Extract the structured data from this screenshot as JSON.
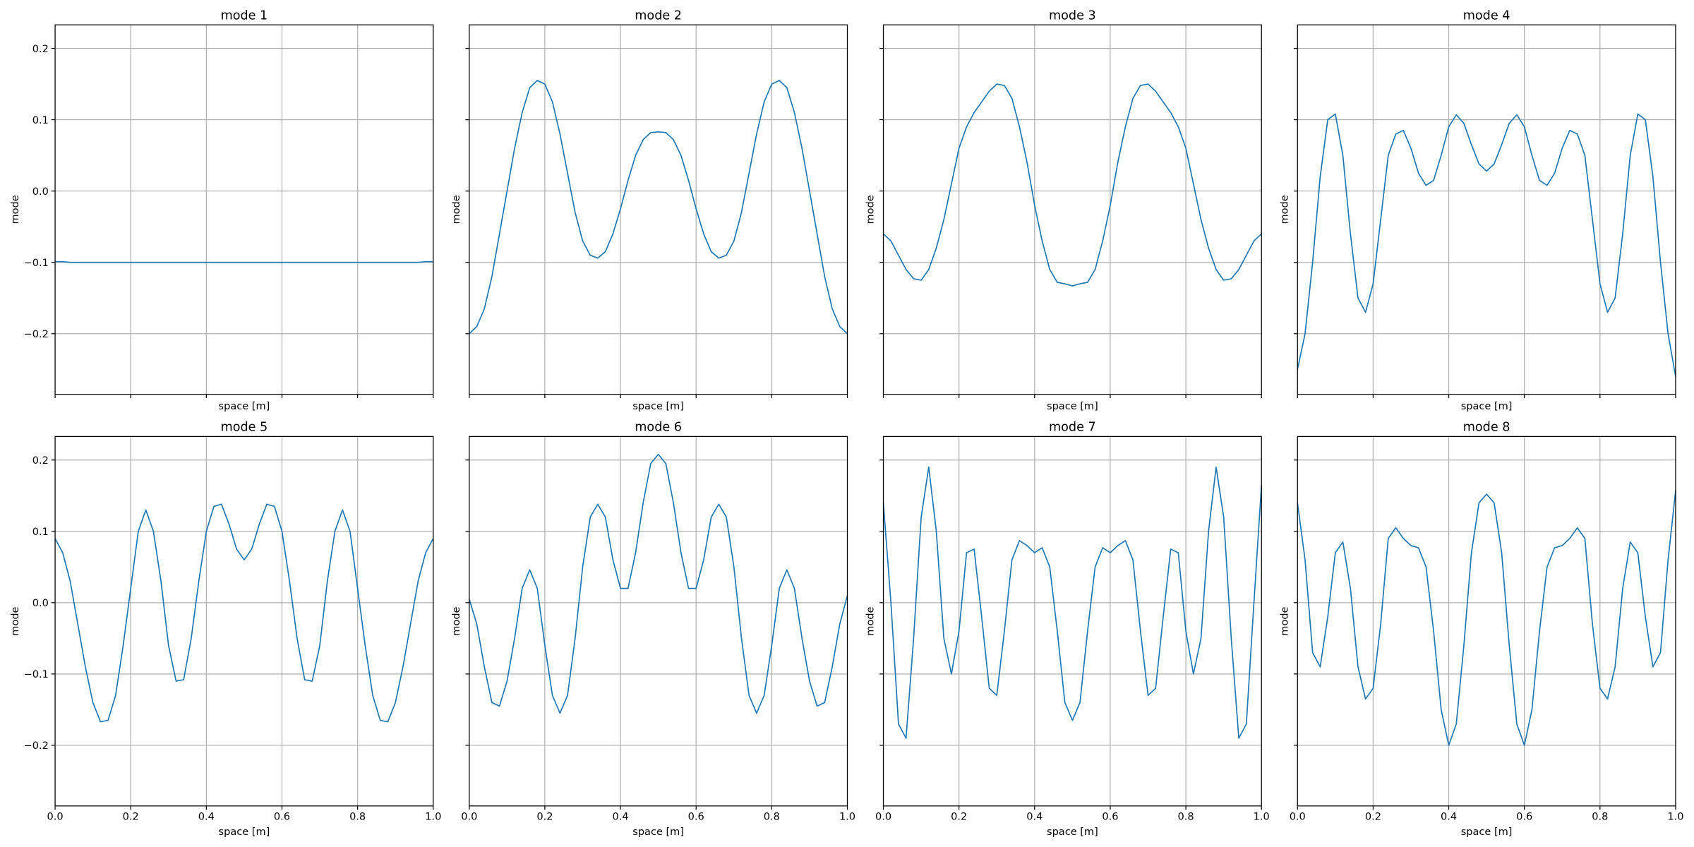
{
  "chart_data": [
    {
      "type": "line",
      "title": "mode 1",
      "xlabel": "space [m]",
      "ylabel": "mode",
      "color": "#1f77b4",
      "grid": true,
      "x": [
        0,
        0.02,
        0.04,
        0.06,
        0.08,
        0.1,
        0.12,
        0.14,
        0.16,
        0.18,
        0.2,
        0.22,
        0.24,
        0.26,
        0.28,
        0.3,
        0.32,
        0.34,
        0.36,
        0.38,
        0.4,
        0.42,
        0.44,
        0.46,
        0.48,
        0.5,
        0.52,
        0.54,
        0.56,
        0.58,
        0.6,
        0.62,
        0.64,
        0.66,
        0.68,
        0.7,
        0.72,
        0.74,
        0.76,
        0.78,
        0.8,
        0.82,
        0.84,
        0.86,
        0.88,
        0.9,
        0.92,
        0.94,
        0.96,
        0.98,
        1
      ],
      "values": [
        -0.099,
        -0.099,
        -0.1,
        -0.1,
        -0.1,
        -0.1,
        -0.1,
        -0.1,
        -0.1,
        -0.1,
        -0.1,
        -0.1,
        -0.1,
        -0.1,
        -0.1,
        -0.1,
        -0.1,
        -0.1,
        -0.1,
        -0.1,
        -0.1,
        -0.1,
        -0.1,
        -0.1,
        -0.1,
        -0.1,
        -0.1,
        -0.1,
        -0.1,
        -0.1,
        -0.1,
        -0.1,
        -0.1,
        -0.1,
        -0.1,
        -0.1,
        -0.1,
        -0.1,
        -0.1,
        -0.1,
        -0.1,
        -0.1,
        -0.1,
        -0.1,
        -0.1,
        -0.1,
        -0.1,
        -0.1,
        -0.1,
        -0.099,
        -0.099
      ],
      "xlim": [
        0,
        1
      ],
      "ylim": [
        -0.285,
        0.233
      ],
      "xticks": [
        {
          "value": 0,
          "label": "0.0"
        },
        0.2,
        0.4,
        0.6,
        0.8,
        {
          "value": 1,
          "label": "1.0"
        }
      ],
      "yticks": [
        {
          "value": -0.2,
          "label": "−0.2"
        },
        {
          "value": -0.1,
          "label": "−0.1"
        },
        {
          "value": 0,
          "label": "0.0"
        },
        0.1,
        0.2
      ]
    },
    {
      "type": "line",
      "title": "mode 2",
      "xlabel": "space [m]",
      "ylabel": "mode",
      "color": "#1f77b4",
      "grid": true,
      "x": [
        0,
        0.02,
        0.04,
        0.06,
        0.08,
        0.1,
        0.12,
        0.14,
        0.16,
        0.18,
        0.2,
        0.22,
        0.24,
        0.26,
        0.28,
        0.3,
        0.32,
        0.34,
        0.36,
        0.38,
        0.4,
        0.42,
        0.44,
        0.46,
        0.48,
        0.5,
        0.52,
        0.54,
        0.56,
        0.58,
        0.6,
        0.62,
        0.64,
        0.66,
        0.68,
        0.7,
        0.72,
        0.74,
        0.76,
        0.78,
        0.8,
        0.82,
        0.84,
        0.86,
        0.88,
        0.9,
        0.92,
        0.94,
        0.96,
        0.98,
        1
      ],
      "values": [
        -0.2,
        -0.19,
        -0.165,
        -0.12,
        -0.06,
        0,
        0.06,
        0.11,
        0.145,
        0.155,
        0.15,
        0.125,
        0.08,
        0.025,
        -0.03,
        -0.07,
        -0.09,
        -0.094,
        -0.085,
        -0.06,
        -0.025,
        0.015,
        0.05,
        0.072,
        0.082,
        0.083,
        0.082,
        0.072,
        0.05,
        0.015,
        -0.025,
        -0.06,
        -0.085,
        -0.094,
        -0.09,
        -0.07,
        -0.03,
        0.025,
        0.08,
        0.125,
        0.15,
        0.155,
        0.145,
        0.11,
        0.06,
        0,
        -0.06,
        -0.12,
        -0.165,
        -0.19,
        -0.2
      ],
      "xlim": [
        0,
        1
      ],
      "ylim": [
        -0.285,
        0.233
      ],
      "xticks": [
        {
          "value": 0,
          "label": "0.0"
        },
        0.2,
        0.4,
        0.6,
        0.8,
        {
          "value": 1,
          "label": "1.0"
        }
      ],
      "yticks": [
        {
          "value": -0.2,
          "label": "−0.2"
        },
        {
          "value": -0.1,
          "label": "−0.1"
        },
        {
          "value": 0,
          "label": "0.0"
        },
        0.1,
        0.2
      ]
    },
    {
      "type": "line",
      "title": "mode 3",
      "xlabel": "space [m]",
      "ylabel": "mode",
      "color": "#1f77b4",
      "grid": true,
      "x": [
        0,
        0.02,
        0.04,
        0.06,
        0.08,
        0.1,
        0.12,
        0.14,
        0.16,
        0.18,
        0.2,
        0.22,
        0.24,
        0.26,
        0.28,
        0.3,
        0.32,
        0.34,
        0.36,
        0.38,
        0.4,
        0.42,
        0.44,
        0.46,
        0.48,
        0.5,
        0.52,
        0.54,
        0.56,
        0.58,
        0.6,
        0.62,
        0.64,
        0.66,
        0.68,
        0.7,
        0.72,
        0.74,
        0.76,
        0.78,
        0.8,
        0.82,
        0.84,
        0.86,
        0.88,
        0.9,
        0.92,
        0.94,
        0.96,
        0.98,
        1
      ],
      "values": [
        -0.06,
        -0.07,
        -0.09,
        -0.11,
        -0.123,
        -0.125,
        -0.11,
        -0.08,
        -0.04,
        0.01,
        0.06,
        0.09,
        0.11,
        0.125,
        0.14,
        0.15,
        0.148,
        0.13,
        0.09,
        0.04,
        -0.02,
        -0.07,
        -0.11,
        -0.128,
        -0.13,
        -0.133,
        -0.13,
        -0.128,
        -0.11,
        -0.07,
        -0.02,
        0.04,
        0.09,
        0.13,
        0.148,
        0.15,
        0.14,
        0.125,
        0.11,
        0.09,
        0.06,
        0.01,
        -0.04,
        -0.08,
        -0.11,
        -0.125,
        -0.123,
        -0.11,
        -0.09,
        -0.07,
        -0.06
      ],
      "xlim": [
        0,
        1
      ],
      "ylim": [
        -0.285,
        0.233
      ],
      "xticks": [
        {
          "value": 0,
          "label": "0.0"
        },
        0.2,
        0.4,
        0.6,
        0.8,
        {
          "value": 1,
          "label": "1.0"
        }
      ],
      "yticks": [
        {
          "value": -0.2,
          "label": "−0.2"
        },
        {
          "value": -0.1,
          "label": "−0.1"
        },
        {
          "value": 0,
          "label": "0.0"
        },
        0.1,
        0.2
      ]
    },
    {
      "type": "line",
      "title": "mode 4",
      "xlabel": "space [m]",
      "ylabel": "mode",
      "color": "#1f77b4",
      "grid": true,
      "x": [
        0,
        0.02,
        0.04,
        0.06,
        0.08,
        0.1,
        0.12,
        0.14,
        0.16,
        0.18,
        0.2,
        0.22,
        0.24,
        0.26,
        0.28,
        0.3,
        0.32,
        0.34,
        0.36,
        0.38,
        0.4,
        0.42,
        0.44,
        0.46,
        0.48,
        0.5,
        0.52,
        0.54,
        0.56,
        0.58,
        0.6,
        0.62,
        0.64,
        0.66,
        0.68,
        0.7,
        0.72,
        0.74,
        0.76,
        0.78,
        0.8,
        0.82,
        0.84,
        0.86,
        0.88,
        0.9,
        0.92,
        0.94,
        0.96,
        0.98,
        1
      ],
      "values": [
        -0.25,
        -0.2,
        -0.1,
        0.02,
        0.1,
        0.108,
        0.05,
        -0.06,
        -0.15,
        -0.17,
        -0.13,
        -0.04,
        0.05,
        0.08,
        0.085,
        0.06,
        0.025,
        0.008,
        0.015,
        0.05,
        0.09,
        0.107,
        0.095,
        0.065,
        0.038,
        0.028,
        0.038,
        0.065,
        0.095,
        0.107,
        0.09,
        0.05,
        0.015,
        0.008,
        0.025,
        0.06,
        0.085,
        0.08,
        0.05,
        -0.04,
        -0.13,
        -0.17,
        -0.15,
        -0.06,
        0.05,
        0.108,
        0.1,
        0.02,
        -0.1,
        -0.2,
        -0.26
      ],
      "xlim": [
        0,
        1
      ],
      "ylim": [
        -0.285,
        0.233
      ],
      "xticks": [
        {
          "value": 0,
          "label": "0.0"
        },
        0.2,
        0.4,
        0.6,
        0.8,
        {
          "value": 1,
          "label": "1.0"
        }
      ],
      "yticks": [
        {
          "value": -0.2,
          "label": "−0.2"
        },
        {
          "value": -0.1,
          "label": "−0.1"
        },
        {
          "value": 0,
          "label": "0.0"
        },
        0.1,
        0.2
      ]
    },
    {
      "type": "line",
      "title": "mode 5",
      "xlabel": "space [m]",
      "ylabel": "mode",
      "color": "#1f77b4",
      "grid": true,
      "x": [
        0,
        0.02,
        0.04,
        0.06,
        0.08,
        0.1,
        0.12,
        0.14,
        0.16,
        0.18,
        0.2,
        0.22,
        0.24,
        0.26,
        0.28,
        0.3,
        0.32,
        0.34,
        0.36,
        0.38,
        0.4,
        0.42,
        0.44,
        0.46,
        0.48,
        0.5,
        0.52,
        0.54,
        0.56,
        0.58,
        0.6,
        0.62,
        0.64,
        0.66,
        0.68,
        0.7,
        0.72,
        0.74,
        0.76,
        0.78,
        0.8,
        0.82,
        0.84,
        0.86,
        0.88,
        0.9,
        0.92,
        0.94,
        0.96,
        0.98,
        1
      ],
      "values": [
        0.09,
        0.07,
        0.03,
        -0.03,
        -0.09,
        -0.14,
        -0.167,
        -0.165,
        -0.13,
        -0.06,
        0.02,
        0.1,
        0.13,
        0.1,
        0.03,
        -0.06,
        -0.11,
        -0.108,
        -0.05,
        0.03,
        0.1,
        0.135,
        0.138,
        0.11,
        0.075,
        0.06,
        0.075,
        0.11,
        0.138,
        0.135,
        0.1,
        0.03,
        -0.05,
        -0.108,
        -0.11,
        -0.06,
        0.03,
        0.1,
        0.13,
        0.1,
        0.02,
        -0.06,
        -0.13,
        -0.165,
        -0.167,
        -0.14,
        -0.09,
        -0.03,
        0.03,
        0.07,
        0.09
      ],
      "xlim": [
        0,
        1
      ],
      "ylim": [
        -0.285,
        0.233
      ],
      "xticks": [
        {
          "value": 0,
          "label": "0.0"
        },
        0.2,
        0.4,
        0.6,
        0.8,
        {
          "value": 1,
          "label": "1.0"
        }
      ],
      "yticks": [
        {
          "value": -0.2,
          "label": "−0.2"
        },
        {
          "value": -0.1,
          "label": "−0.1"
        },
        {
          "value": 0,
          "label": "0.0"
        },
        0.1,
        0.2
      ]
    },
    {
      "type": "line",
      "title": "mode 6",
      "xlabel": "space [m]",
      "ylabel": "mode",
      "color": "#1f77b4",
      "grid": true,
      "x": [
        0,
        0.02,
        0.04,
        0.06,
        0.08,
        0.1,
        0.12,
        0.14,
        0.16,
        0.18,
        0.2,
        0.22,
        0.24,
        0.26,
        0.28,
        0.3,
        0.32,
        0.34,
        0.36,
        0.38,
        0.4,
        0.42,
        0.44,
        0.46,
        0.48,
        0.5,
        0.52,
        0.54,
        0.56,
        0.58,
        0.6,
        0.62,
        0.64,
        0.66,
        0.68,
        0.7,
        0.72,
        0.74,
        0.76,
        0.78,
        0.8,
        0.82,
        0.84,
        0.86,
        0.88,
        0.9,
        0.92,
        0.94,
        0.96,
        0.98,
        1
      ],
      "values": [
        0.005,
        -0.03,
        -0.09,
        -0.14,
        -0.145,
        -0.11,
        -0.05,
        0.02,
        0.046,
        0.02,
        -0.06,
        -0.13,
        -0.155,
        -0.13,
        -0.05,
        0.05,
        0.12,
        0.138,
        0.12,
        0.06,
        0.02,
        0.02,
        0.07,
        0.14,
        0.195,
        0.208,
        0.195,
        0.14,
        0.07,
        0.02,
        0.02,
        0.06,
        0.12,
        0.138,
        0.12,
        0.05,
        -0.05,
        -0.13,
        -0.155,
        -0.13,
        -0.06,
        0.02,
        0.046,
        0.02,
        -0.05,
        -0.11,
        -0.145,
        -0.14,
        -0.09,
        -0.03,
        0.01
      ],
      "xlim": [
        0,
        1
      ],
      "ylim": [
        -0.285,
        0.233
      ],
      "xticks": [
        {
          "value": 0,
          "label": "0.0"
        },
        0.2,
        0.4,
        0.6,
        0.8,
        {
          "value": 1,
          "label": "1.0"
        }
      ],
      "yticks": [
        {
          "value": -0.2,
          "label": "−0.2"
        },
        {
          "value": -0.1,
          "label": "−0.1"
        },
        {
          "value": 0,
          "label": "0.0"
        },
        0.1,
        0.2
      ]
    },
    {
      "type": "line",
      "title": "mode 7",
      "xlabel": "space [m]",
      "ylabel": "mode",
      "color": "#1f77b4",
      "grid": true,
      "x": [
        0,
        0.02,
        0.04,
        0.06,
        0.08,
        0.1,
        0.12,
        0.14,
        0.16,
        0.18,
        0.2,
        0.22,
        0.24,
        0.26,
        0.28,
        0.3,
        0.32,
        0.34,
        0.36,
        0.38,
        0.4,
        0.42,
        0.44,
        0.46,
        0.48,
        0.5,
        0.52,
        0.54,
        0.56,
        0.58,
        0.6,
        0.62,
        0.64,
        0.66,
        0.68,
        0.7,
        0.72,
        0.74,
        0.76,
        0.78,
        0.8,
        0.82,
        0.84,
        0.86,
        0.88,
        0.9,
        0.92,
        0.94,
        0.96,
        0.98,
        1
      ],
      "values": [
        0.14,
        0,
        -0.17,
        -0.19,
        -0.05,
        0.12,
        0.19,
        0.1,
        -0.05,
        -0.1,
        -0.04,
        0.07,
        0.075,
        -0.02,
        -0.12,
        -0.13,
        -0.04,
        0.06,
        0.087,
        0.08,
        0.07,
        0.077,
        0.05,
        -0.04,
        -0.14,
        -0.165,
        -0.14,
        -0.04,
        0.05,
        0.077,
        0.07,
        0.08,
        0.087,
        0.06,
        -0.04,
        -0.13,
        -0.12,
        -0.02,
        0.075,
        0.07,
        -0.04,
        -0.1,
        -0.05,
        0.1,
        0.19,
        0.12,
        -0.05,
        -0.19,
        -0.17,
        0,
        0.165
      ],
      "xlim": [
        0,
        1
      ],
      "ylim": [
        -0.285,
        0.233
      ],
      "xticks": [
        {
          "value": 0,
          "label": "0.0"
        },
        0.2,
        0.4,
        0.6,
        0.8,
        {
          "value": 1,
          "label": "1.0"
        }
      ],
      "yticks": [
        {
          "value": -0.2,
          "label": "−0.2"
        },
        {
          "value": -0.1,
          "label": "−0.1"
        },
        {
          "value": 0,
          "label": "0.0"
        },
        0.1,
        0.2
      ]
    },
    {
      "type": "line",
      "title": "mode 8",
      "xlabel": "space [m]",
      "ylabel": "mode",
      "color": "#1f77b4",
      "grid": true,
      "x": [
        0,
        0.02,
        0.04,
        0.06,
        0.08,
        0.1,
        0.12,
        0.14,
        0.16,
        0.18,
        0.2,
        0.22,
        0.24,
        0.26,
        0.28,
        0.3,
        0.32,
        0.34,
        0.36,
        0.38,
        0.4,
        0.42,
        0.44,
        0.46,
        0.48,
        0.5,
        0.52,
        0.54,
        0.56,
        0.58,
        0.6,
        0.62,
        0.64,
        0.66,
        0.68,
        0.7,
        0.72,
        0.74,
        0.76,
        0.78,
        0.8,
        0.82,
        0.84,
        0.86,
        0.88,
        0.9,
        0.92,
        0.94,
        0.96,
        0.98,
        1
      ],
      "values": [
        0.14,
        0.06,
        -0.07,
        -0.09,
        -0.02,
        0.07,
        0.085,
        0.02,
        -0.09,
        -0.135,
        -0.12,
        -0.03,
        0.09,
        0.105,
        0.09,
        0.08,
        0.077,
        0.05,
        -0.04,
        -0.15,
        -0.2,
        -0.17,
        -0.06,
        0.07,
        0.14,
        0.152,
        0.14,
        0.07,
        -0.06,
        -0.17,
        -0.2,
        -0.15,
        -0.04,
        0.05,
        0.077,
        0.08,
        0.09,
        0.105,
        0.09,
        -0.03,
        -0.12,
        -0.135,
        -0.09,
        0.02,
        0.085,
        0.07,
        -0.02,
        -0.09,
        -0.07,
        0.06,
        0.157
      ],
      "xlim": [
        0,
        1
      ],
      "ylim": [
        -0.285,
        0.233
      ],
      "xticks": [
        {
          "value": 0,
          "label": "0.0"
        },
        0.2,
        0.4,
        0.6,
        0.8,
        {
          "value": 1,
          "label": "1.0"
        }
      ],
      "yticks": [
        {
          "value": -0.2,
          "label": "−0.2"
        },
        {
          "value": -0.1,
          "label": "−0.1"
        },
        {
          "value": 0,
          "label": "0.0"
        },
        0.1,
        0.2
      ]
    }
  ]
}
